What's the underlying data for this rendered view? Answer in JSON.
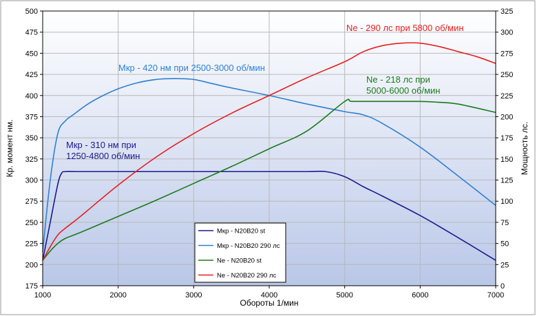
{
  "chart_data": {
    "type": "line",
    "xlabel": "Обороты 1/мин",
    "ylabel_left": "Кр. момент нм.",
    "ylabel_right": "Мощность лс.",
    "xlim": [
      1000,
      7000
    ],
    "xticks": [
      1000,
      2000,
      3000,
      4000,
      5000,
      6000,
      7000
    ],
    "ylim_left": [
      175,
      500
    ],
    "yticks_left": [
      175,
      200,
      225,
      250,
      275,
      300,
      325,
      350,
      375,
      400,
      425,
      450,
      475,
      500
    ],
    "ylim_right": [
      0,
      325
    ],
    "yticks_right": [
      0,
      25,
      50,
      75,
      100,
      125,
      150,
      175,
      200,
      225,
      250,
      275,
      300,
      325
    ],
    "grid": true,
    "legend_position": "bottom-center",
    "series": [
      {
        "name": "Мкр - N20B20 st",
        "axis": "left",
        "color": "#1a1a8c",
        "x": [
          1000,
          1100,
          1200,
          1250,
          1300,
          1500,
          2000,
          3000,
          4000,
          4500,
          4750,
          5000,
          5250,
          5500,
          6000,
          6500,
          7000
        ],
        "y": [
          205,
          250,
          295,
          308,
          310,
          310,
          310,
          310,
          310,
          310,
          310,
          304,
          292,
          281,
          258,
          232,
          205
        ]
      },
      {
        "name": "Мкр - N20B20 290 лс",
        "axis": "left",
        "color": "#2f7fd0",
        "x": [
          1000,
          1100,
          1200,
          1300,
          1400,
          1600,
          1800,
          2000,
          2250,
          2500,
          2750,
          3000,
          3250,
          3500,
          4000,
          4500,
          5000,
          5250,
          5500,
          6000,
          6500,
          7000
        ],
        "y": [
          215,
          300,
          355,
          370,
          377,
          390,
          400,
          408,
          415,
          419,
          420,
          419,
          414,
          409,
          400,
          390,
          381,
          377,
          367,
          339,
          305,
          270
        ]
      },
      {
        "name": "Ne -  N20B20 st",
        "axis": "right",
        "color": "#1a7a1a",
        "x": [
          1000,
          1100,
          1200,
          1300,
          1500,
          2000,
          2500,
          3000,
          3500,
          4000,
          4500,
          5000,
          5100,
          5500,
          6000,
          6250,
          6500,
          7000
        ],
        "y": [
          30,
          41,
          50,
          56,
          63,
          82,
          101,
          121,
          141,
          162,
          183,
          218,
          218,
          218,
          218,
          217,
          215,
          205
        ]
      },
      {
        "name": "Ne - N20B20 290 лс",
        "axis": "right",
        "color": "#e32020",
        "x": [
          1000,
          1100,
          1200,
          1300,
          1500,
          2000,
          2500,
          3000,
          3500,
          4000,
          4500,
          5000,
          5250,
          5500,
          5750,
          6000,
          6250,
          6500,
          6750,
          7000
        ],
        "y": [
          30,
          46,
          60,
          68,
          82,
          119,
          152,
          180,
          204,
          225,
          246,
          265,
          277,
          284,
          287,
          287,
          283,
          277,
          271,
          263
        ]
      }
    ],
    "annotations": [
      {
        "lines": [
          "Ne - 290 лс при 5800 об/мин"
        ],
        "color": "#e32020"
      },
      {
        "lines": [
          "Мкр - 420 нм при 2500-3000 об/мин"
        ],
        "color": "#2f7fd0"
      },
      {
        "lines": [
          "Ne - 218 лс при",
          "5000-6000 об/мин"
        ],
        "color": "#1a7a1a"
      },
      {
        "lines": [
          "Мкр - 310 нм при",
          "1250-4800 об/мин"
        ],
        "color": "#1a1a8c"
      }
    ]
  }
}
